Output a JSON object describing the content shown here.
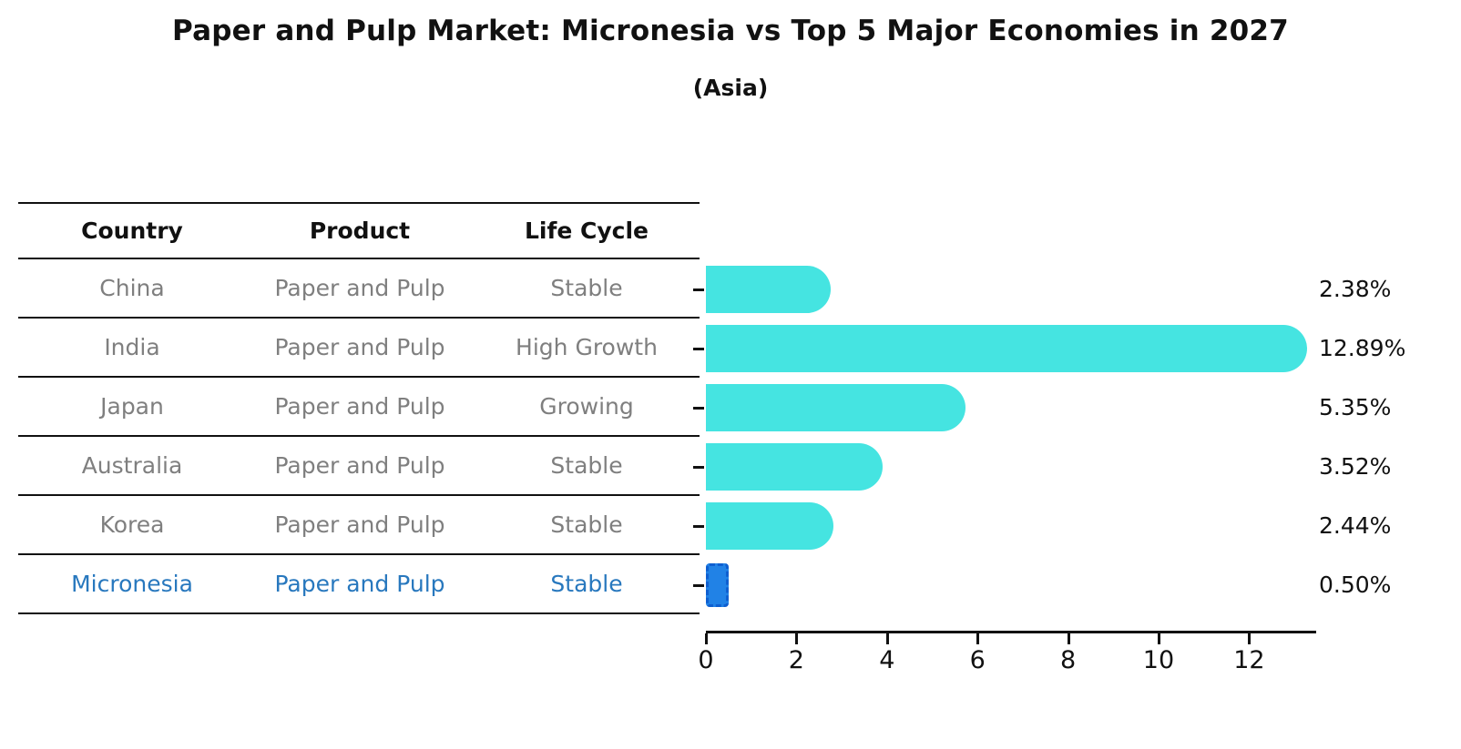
{
  "title": "Paper and Pulp Market: Micronesia vs Top 5 Major Economies in 2027",
  "subtitle": "(Asia)",
  "table": {
    "headers": [
      "Country",
      "Product",
      "Life Cycle"
    ],
    "rows": [
      {
        "country": "China",
        "product": "Paper and Pulp",
        "life_cycle": "Stable",
        "highlight": false
      },
      {
        "country": "India",
        "product": "Paper and Pulp",
        "life_cycle": "High Growth",
        "highlight": false
      },
      {
        "country": "Japan",
        "product": "Paper and Pulp",
        "life_cycle": "Growing",
        "highlight": false
      },
      {
        "country": "Australia",
        "product": "Paper and Pulp",
        "life_cycle": "Stable",
        "highlight": false
      },
      {
        "country": "Korea",
        "product": "Paper and Pulp",
        "life_cycle": "Stable",
        "highlight": false
      },
      {
        "country": "Micronesia",
        "product": "Paper and Pulp",
        "life_cycle": "Stable",
        "highlight": true
      }
    ]
  },
  "chart_data": {
    "type": "bar",
    "orientation": "horizontal",
    "title": "Paper and Pulp Market: Micronesia vs Top 5 Major Economies in 2027",
    "subtitle": "(Asia)",
    "categories": [
      "China",
      "India",
      "Japan",
      "Australia",
      "Korea",
      "Micronesia"
    ],
    "values": [
      2.38,
      12.89,
      5.35,
      3.52,
      2.44,
      0.5
    ],
    "value_labels": [
      "2.38%",
      "12.89%",
      "5.35%",
      "3.52%",
      "2.44%",
      "0.50%"
    ],
    "highlight_index": 5,
    "xlabel": "",
    "ylabel": "",
    "xlim": [
      0,
      13.32
    ],
    "xticks": [
      0,
      2,
      4,
      6,
      8,
      10,
      12
    ],
    "grid": false,
    "legend": "none",
    "bar_color": "#45e4e1",
    "highlight_bar_color": "#2182e6",
    "highlight_text_color": "#2878be",
    "text_color": "#111111",
    "table_text_color": "#7f7f7f"
  }
}
